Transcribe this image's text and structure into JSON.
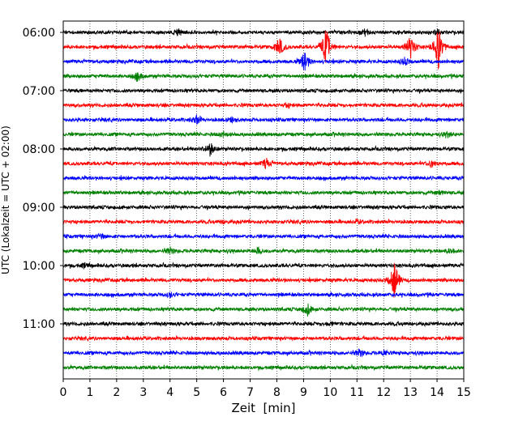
{
  "chart_data": {
    "type": "line",
    "title": "",
    "xlabel": "Zeit  [min]",
    "ylabel": "UTC (Lokalzeit = UTC + 02:00)",
    "xlim": [
      0,
      15
    ],
    "x_ticks": [
      0,
      1,
      2,
      3,
      4,
      5,
      6,
      7,
      8,
      9,
      10,
      11,
      12,
      13,
      14,
      15
    ],
    "y_tick_labels": [
      "06:00",
      "07:00",
      "08:00",
      "09:00",
      "10:00",
      "11:00"
    ],
    "grid": "vertical dotted at each minute",
    "trace_colors": [
      "#000000",
      "#ff0000",
      "#0000ff",
      "#008000"
    ],
    "trace_interval_min": 15,
    "traces": [
      {
        "start": "06:00",
        "color": "#000000",
        "events": [
          {
            "t": 4.3,
            "amp": 0.35
          },
          {
            "t": 11.3,
            "amp": 0.3
          },
          {
            "t": 14.0,
            "amp": 0.2
          }
        ]
      },
      {
        "start": "06:15",
        "color": "#ff0000",
        "events": [
          {
            "t": 8.1,
            "amp": 1.0
          },
          {
            "t": 9.85,
            "amp": 2.2
          },
          {
            "t": 13.0,
            "amp": 1.3
          },
          {
            "t": 14.05,
            "amp": 2.3
          }
        ]
      },
      {
        "start": "06:30",
        "color": "#0000ff",
        "events": [
          {
            "t": 9.05,
            "amp": 1.1
          },
          {
            "t": 12.8,
            "amp": 0.4
          }
        ]
      },
      {
        "start": "06:45",
        "color": "#008000",
        "events": [
          {
            "t": 2.8,
            "amp": 0.45
          }
        ]
      },
      {
        "start": "07:00",
        "color": "#000000",
        "events": []
      },
      {
        "start": "07:15",
        "color": "#ff0000",
        "events": [
          {
            "t": 8.4,
            "amp": 0.2
          }
        ]
      },
      {
        "start": "07:30",
        "color": "#0000ff",
        "events": [
          {
            "t": 5.0,
            "amp": 0.45
          },
          {
            "t": 6.3,
            "amp": 0.25
          }
        ]
      },
      {
        "start": "07:45",
        "color": "#008000",
        "events": [
          {
            "t": 6.0,
            "amp": 0.25
          },
          {
            "t": 14.4,
            "amp": 0.25
          }
        ]
      },
      {
        "start": "08:00",
        "color": "#000000",
        "events": [
          {
            "t": 5.5,
            "amp": 0.7
          }
        ]
      },
      {
        "start": "08:15",
        "color": "#ff0000",
        "events": [
          {
            "t": 7.6,
            "amp": 0.5
          },
          {
            "t": 13.8,
            "amp": 0.4
          }
        ]
      },
      {
        "start": "08:30",
        "color": "#0000ff",
        "events": []
      },
      {
        "start": "08:45",
        "color": "#008000",
        "events": [
          {
            "t": 14.1,
            "amp": 0.2
          }
        ]
      },
      {
        "start": "09:00",
        "color": "#000000",
        "events": []
      },
      {
        "start": "09:15",
        "color": "#ff0000",
        "events": [
          {
            "t": 6.0,
            "amp": 0.2
          },
          {
            "t": 11.0,
            "amp": 0.2
          }
        ]
      },
      {
        "start": "09:30",
        "color": "#0000ff",
        "events": [
          {
            "t": 1.4,
            "amp": 0.25
          }
        ]
      },
      {
        "start": "09:45",
        "color": "#008000",
        "events": [
          {
            "t": 4.0,
            "amp": 0.35
          },
          {
            "t": 7.3,
            "amp": 0.35
          },
          {
            "t": 14.5,
            "amp": 0.25
          }
        ]
      },
      {
        "start": "10:00",
        "color": "#000000",
        "events": [
          {
            "t": 0.8,
            "amp": 0.2
          }
        ]
      },
      {
        "start": "10:15",
        "color": "#ff0000",
        "events": [
          {
            "t": 12.4,
            "amp": 2.0
          }
        ]
      },
      {
        "start": "10:30",
        "color": "#0000ff",
        "events": [
          {
            "t": 4.0,
            "amp": 0.25
          }
        ]
      },
      {
        "start": "10:45",
        "color": "#008000",
        "events": [
          {
            "t": 9.15,
            "amp": 0.6
          }
        ]
      },
      {
        "start": "11:00",
        "color": "#000000",
        "events": [
          {
            "t": 10.0,
            "amp": 0.2
          }
        ]
      },
      {
        "start": "11:15",
        "color": "#ff0000",
        "events": []
      },
      {
        "start": "11:30",
        "color": "#0000ff",
        "events": [
          {
            "t": 11.1,
            "amp": 0.4
          },
          {
            "t": 12.0,
            "amp": 0.25
          }
        ]
      },
      {
        "start": "11:45",
        "color": "#008000",
        "events": []
      }
    ]
  }
}
